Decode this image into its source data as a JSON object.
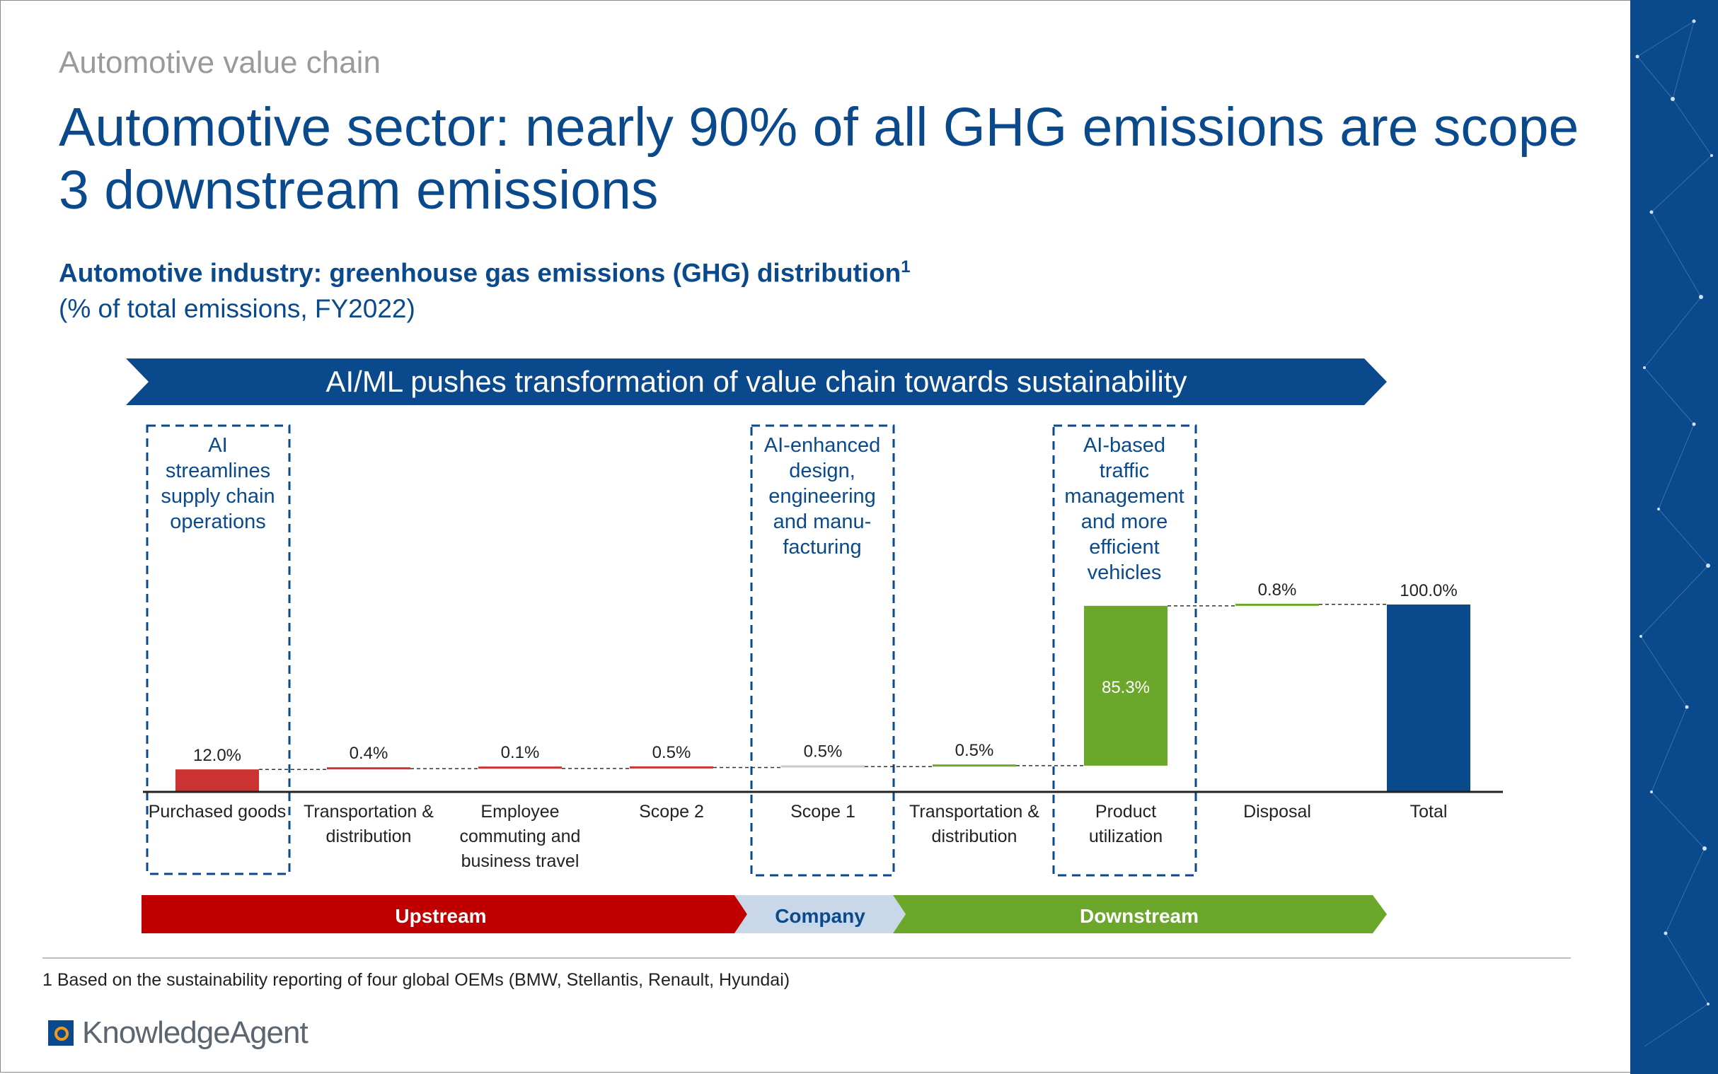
{
  "header": {
    "eyebrow": "Automotive value chain",
    "headline": "Automotive sector: nearly 90% of all GHG emissions are scope 3 downstream emissions",
    "subtitle": "Automotive industry: greenhouse gas emissions (GHG) distribution",
    "subtitle_sup": "1",
    "unit": "(% of total emissions, FY2022)"
  },
  "banner": {
    "text": "AI/ML pushes transformation of value chain towards sustainability",
    "color": "#0a4a8c"
  },
  "notes": {
    "upstream_note": "AI streamlines supply chain operations",
    "company_note": "AI-enhanced design, engineering and manu-facturing",
    "downstream_note": "AI-based traffic management and more efficient vehicles"
  },
  "stages": {
    "upstream": "Upstream",
    "company": "Company",
    "downstream": "Downstream",
    "colors": {
      "upstream": "#c00000",
      "company": "#c9d8e8",
      "downstream": "#6aa72a"
    }
  },
  "chart_data": {
    "type": "bar",
    "subtype": "waterfall",
    "categories": [
      "Purchased goods",
      "Transportation & distribution",
      "Employee commuting and business travel",
      "Scope 2",
      "Scope 1",
      "Transportation & distribution",
      "Product utilization",
      "Disposal",
      "Total"
    ],
    "values": [
      12.0,
      0.4,
      0.1,
      0.5,
      0.5,
      0.5,
      85.3,
      0.8,
      100.0
    ],
    "labels": [
      "12.0%",
      "0.4%",
      "0.1%",
      "0.5%",
      "0.5%",
      "0.5%",
      "85.3%",
      "0.8%",
      "100.0%"
    ],
    "colors": [
      "#cc3333",
      "#cc3333",
      "#cc3333",
      "#cc3333",
      "#c9c9c9",
      "#6aa72a",
      "#6aa72a",
      "#6aa72a",
      "#0a4a8c"
    ],
    "is_total": [
      false,
      false,
      false,
      false,
      false,
      false,
      false,
      false,
      true
    ],
    "ylim": [
      0,
      100
    ],
    "grid": false,
    "legend": "none"
  },
  "footer": {
    "footnote": "1 Based on the sustainability reporting of four global OEMs (BMW, Stellantis, Renault, Hyundai)",
    "logo_text": "KnowledgeAgent"
  }
}
